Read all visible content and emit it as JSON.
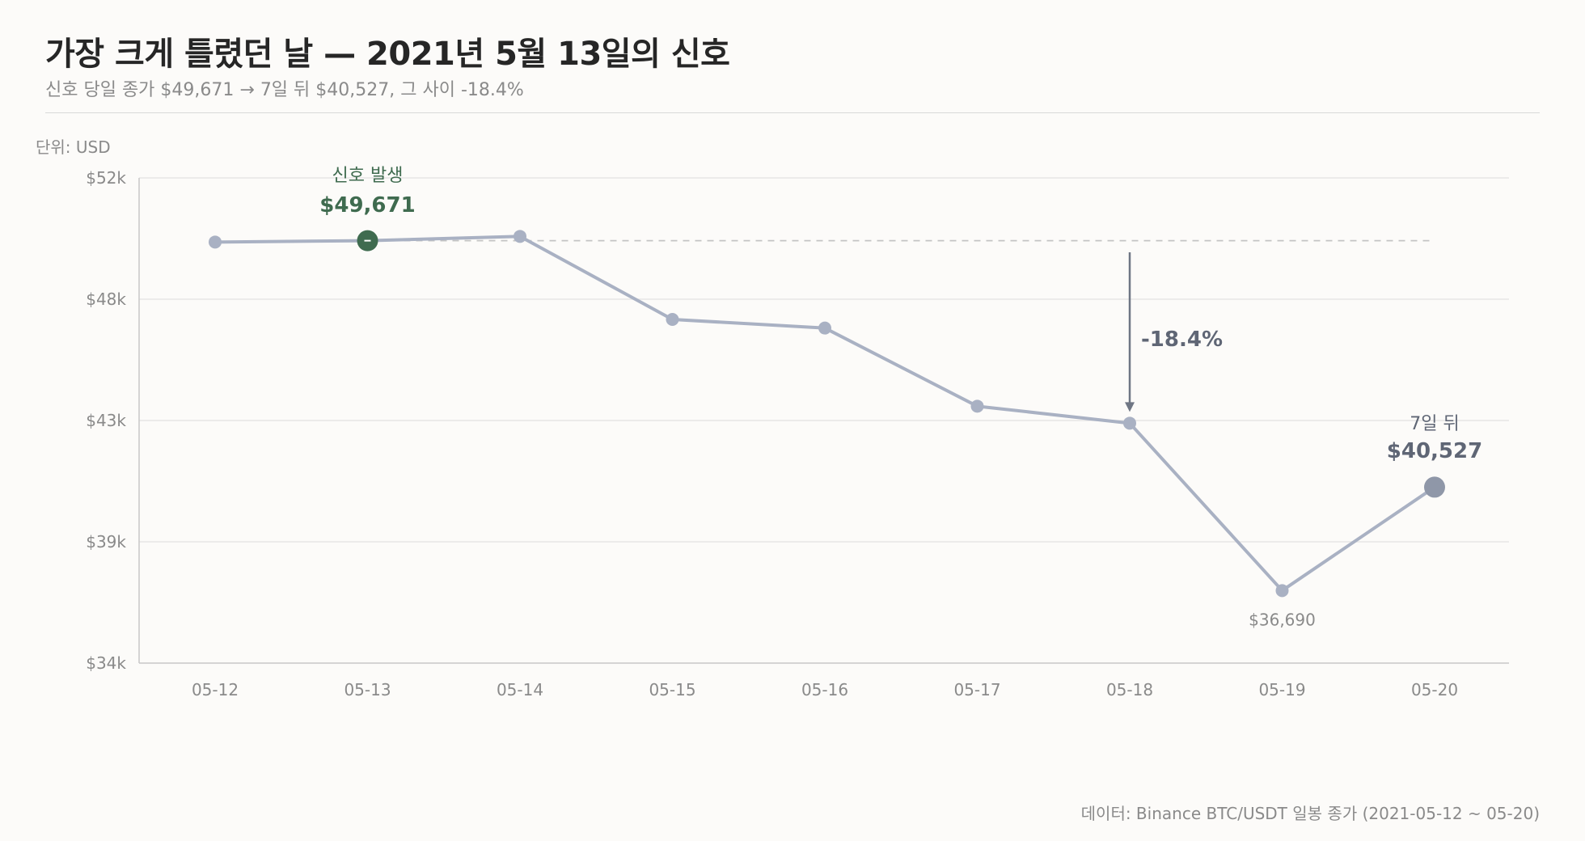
{
  "header": {
    "title": "가장 크게 틀렸던 날 — 2021년 5월 13일의 신호",
    "subtitle": "신호 당일 종가 $49,671 → 7일 뒤 $40,527, 그 사이 -18.4%"
  },
  "unit_label": "단위: USD",
  "source": "데이터: Binance BTC/USDT 일봉 종가 (2021-05-12 ~ 05-20)",
  "colors": {
    "line": "#a9b1c3",
    "signal": "#3f6b4f",
    "end": "#8f97a8",
    "arrow": "#6f7684",
    "reference": "#c4c4c4",
    "grid": "#e6e6e6",
    "axis": "#c8c8c8"
  },
  "annotations": {
    "signal_label": "신호 발생",
    "signal_value": "$49,671",
    "end_label": "7일 뒤",
    "end_value": "$40,527",
    "drop_label": "-18.4%",
    "low_value": "$36,690"
  },
  "chart_data": {
    "type": "line",
    "title": "가장 크게 틀렸던 날 — 2021년 5월 13일의 신호",
    "subtitle": "신호 당일 종가 $49,671 → 7일 뒤 $40,527, 그 사이 -18.4%",
    "ylabel": "단위: USD",
    "xlabel": "",
    "categories": [
      "05-12",
      "05-13",
      "05-14",
      "05-15",
      "05-16",
      "05-17",
      "05-18",
      "05-19",
      "05-20"
    ],
    "series": [
      {
        "values": [
          49620,
          49671,
          49830,
          46750,
          46430,
          43530,
          42900,
          36690,
          40527
        ]
      }
    ],
    "ylim": [
      34000,
      52000
    ],
    "yticks": [
      34000,
      38500,
      43000,
      47500,
      52000
    ],
    "ytick_labels": [
      "$34k",
      "$39k",
      "$43k",
      "$48k",
      "$52k"
    ],
    "reference_line": 49671,
    "signal_index": 1,
    "end_index": 8,
    "low_index": 7,
    "drop_arrow_index": 6,
    "grid": true,
    "legend": "none"
  }
}
